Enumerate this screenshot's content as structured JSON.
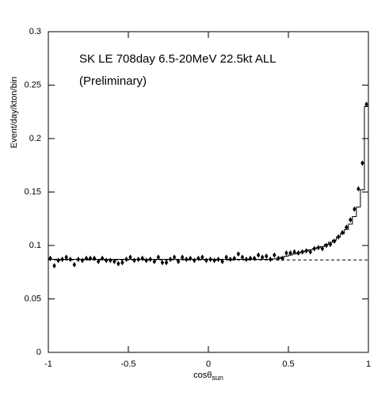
{
  "chart_data": {
    "type": "histogram",
    "title": "SK LE 708day  6.5-20MeV  22.5kt  ALL",
    "subtitle": "(Preliminary)",
    "y_label": "Event/day/kton/bin",
    "x_label": "cosθ",
    "x_label_sub": "sun",
    "xlim": [
      -1,
      1
    ],
    "ylim": [
      0,
      0.3
    ],
    "xticks": [
      -1,
      -0.5,
      0,
      0.5,
      1
    ],
    "yticks": [
      0,
      0.05,
      0.1,
      0.15,
      0.2,
      0.25,
      0.3
    ],
    "bins": [
      -1,
      -0.975,
      -0.95,
      -0.925,
      -0.9,
      -0.875,
      -0.85,
      -0.825,
      -0.8,
      -0.775,
      -0.75,
      -0.725,
      -0.7,
      -0.675,
      -0.65,
      -0.625,
      -0.6,
      -0.575,
      -0.55,
      -0.525,
      -0.5,
      -0.475,
      -0.45,
      -0.425,
      -0.4,
      -0.375,
      -0.35,
      -0.325,
      -0.3,
      -0.275,
      -0.25,
      -0.225,
      -0.2,
      -0.175,
      -0.15,
      -0.125,
      -0.1,
      -0.075,
      -0.05,
      -0.025,
      0,
      0.025,
      0.05,
      0.075,
      0.1,
      0.125,
      0.15,
      0.175,
      0.2,
      0.225,
      0.25,
      0.275,
      0.3,
      0.325,
      0.35,
      0.375,
      0.4,
      0.425,
      0.45,
      0.475,
      0.5,
      0.525,
      0.55,
      0.575,
      0.6,
      0.625,
      0.65,
      0.675,
      0.7,
      0.725,
      0.75,
      0.775,
      0.8,
      0.825,
      0.85,
      0.875,
      0.9,
      0.925,
      0.95,
      0.975,
      1
    ],
    "series": [
      {
        "color": "#000000",
        "values": [
          0.088,
          0.081,
          0.086,
          0.087,
          0.089,
          0.087,
          0.082,
          0.087,
          0.086,
          0.088,
          0.088,
          0.088,
          0.085,
          0.088,
          0.086,
          0.086,
          0.085,
          0.083,
          0.084,
          0.087,
          0.089,
          0.086,
          0.087,
          0.088,
          0.086,
          0.087,
          0.085,
          0.089,
          0.084,
          0.084,
          0.087,
          0.089,
          0.085,
          0.089,
          0.087,
          0.088,
          0.086,
          0.088,
          0.089,
          0.086,
          0.087,
          0.086,
          0.087,
          0.085,
          0.089,
          0.087,
          0.088,
          0.092,
          0.089,
          0.087,
          0.088,
          0.088,
          0.091,
          0.089,
          0.09,
          0.087,
          0.091,
          0.088,
          0.088,
          0.093,
          0.093,
          0.094,
          0.093,
          0.094,
          0.095,
          0.094,
          0.097,
          0.098,
          0.097,
          0.1,
          0.101,
          0.104,
          0.108,
          0.112,
          0.117,
          0.124,
          0.134,
          0.153,
          0.177,
          0.232
        ]
      },
      {
        "color": "#000000",
        "values": [
          0.087,
          0.087,
          0.087,
          0.087,
          0.087,
          0.087,
          0.087,
          0.087,
          0.087,
          0.087,
          0.087,
          0.087,
          0.087,
          0.087,
          0.087,
          0.087,
          0.087,
          0.087,
          0.087,
          0.087,
          0.087,
          0.087,
          0.087,
          0.087,
          0.087,
          0.087,
          0.087,
          0.087,
          0.087,
          0.087,
          0.087,
          0.087,
          0.087,
          0.087,
          0.087,
          0.087,
          0.087,
          0.087,
          0.087,
          0.087,
          0.087,
          0.087,
          0.087,
          0.087,
          0.087,
          0.087,
          0.087,
          0.087,
          0.087,
          0.087,
          0.087,
          0.087,
          0.087,
          0.087,
          0.087,
          0.087,
          0.0875,
          0.088,
          0.089,
          0.09,
          0.091,
          0.092,
          0.093,
          0.094,
          0.095,
          0.096,
          0.097,
          0.098,
          0.099,
          0.101,
          0.103,
          0.105,
          0.108,
          0.111,
          0.115,
          0.12,
          0.127,
          0.136,
          0.152,
          0.23
        ]
      }
    ],
    "background": 0.0865
  }
}
